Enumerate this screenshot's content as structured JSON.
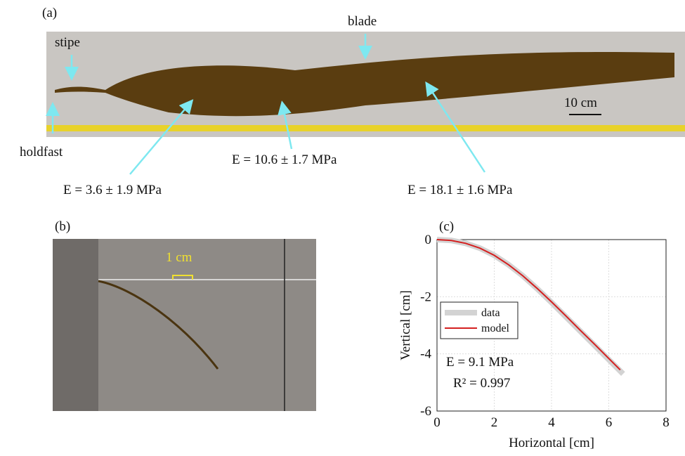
{
  "panel_a": {
    "label": "(a)",
    "blade": "blade",
    "stipe": "stipe",
    "holdfast": "holdfast",
    "scale": "10 cm",
    "e_mid": "E = 10.6 ± 1.7 MPa",
    "e_base": "E = 3.6 ± 1.9 MPa",
    "e_tip": "E = 18.1 ± 1.6 MPa"
  },
  "panel_b": {
    "label": "(b)",
    "scale": "1 cm"
  },
  "chart_data": {
    "type": "line",
    "label": "(c)",
    "x_label": "Horizontal [cm]",
    "y_label": "Vertical [cm]",
    "xlim": [
      0,
      8
    ],
    "ylim": [
      -6,
      0
    ],
    "xticks": [
      0,
      2,
      4,
      6,
      8
    ],
    "yticks": [
      -6,
      -4,
      -2,
      0
    ],
    "grid": true,
    "legend": "middle left",
    "series": [
      {
        "name": "data",
        "color": "#d3d3d3",
        "x": [
          0,
          0.5,
          1,
          1.5,
          2,
          2.5,
          3,
          3.5,
          4,
          4.5,
          5,
          5.5,
          6,
          6.5
        ],
        "values": [
          0,
          -0.03,
          -0.13,
          -0.3,
          -0.55,
          -0.88,
          -1.27,
          -1.72,
          -2.2,
          -2.7,
          -3.2,
          -3.7,
          -4.2,
          -4.7
        ]
      },
      {
        "name": "model",
        "color": "#d42020",
        "x": [
          0,
          0.5,
          1,
          1.5,
          2,
          2.5,
          3,
          3.5,
          4,
          4.5,
          5,
          5.5,
          6,
          6.4
        ],
        "values": [
          0,
          -0.03,
          -0.13,
          -0.3,
          -0.55,
          -0.88,
          -1.27,
          -1.71,
          -2.18,
          -2.67,
          -3.17,
          -3.66,
          -4.16,
          -4.56
        ]
      }
    ],
    "annotations": [
      "E = 9.1 MPa",
      "R² = 0.997"
    ]
  }
}
